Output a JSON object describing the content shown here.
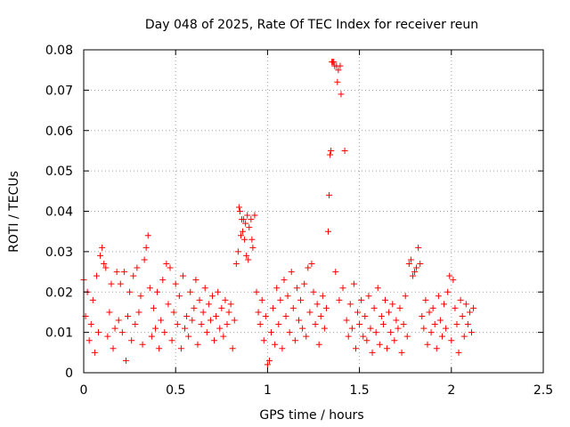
{
  "chart_data": {
    "type": "scatter",
    "title": "Day 048 of 2025, Rate Of TEC Index for receiver reun",
    "xlabel": "GPS time / hours",
    "ylabel": "ROTI / TECUs",
    "xlim": [
      0,
      2.5
    ],
    "ylim": [
      0,
      0.08
    ],
    "x_ticks": [
      0,
      0.5,
      1,
      1.5,
      2,
      2.5
    ],
    "x_tick_labels": [
      "0",
      "0.5",
      "1",
      "1.5",
      "2",
      "2.5"
    ],
    "y_ticks": [
      0,
      0.01,
      0.02,
      0.03,
      0.04,
      0.05,
      0.06,
      0.07,
      0.08
    ],
    "y_tick_labels": [
      "0",
      "0.01",
      "0.02",
      "0.03",
      "0.04",
      "0.05",
      "0.06",
      "0.07",
      "0.08"
    ],
    "grid": true,
    "marker": "+",
    "color": "#ff0000",
    "series": [
      {
        "name": "ROTI",
        "points": [
          [
            0.0,
            0.023
          ],
          [
            0.01,
            0.014
          ],
          [
            0.02,
            0.02
          ],
          [
            0.03,
            0.008
          ],
          [
            0.04,
            0.012
          ],
          [
            0.05,
            0.018
          ],
          [
            0.06,
            0.005
          ],
          [
            0.07,
            0.024
          ],
          [
            0.08,
            0.01
          ],
          [
            0.09,
            0.029
          ],
          [
            0.1,
            0.031
          ],
          [
            0.11,
            0.027
          ],
          [
            0.12,
            0.026
          ],
          [
            0.13,
            0.009
          ],
          [
            0.14,
            0.015
          ],
          [
            0.15,
            0.022
          ],
          [
            0.16,
            0.006
          ],
          [
            0.17,
            0.011
          ],
          [
            0.18,
            0.025
          ],
          [
            0.19,
            0.013
          ],
          [
            0.2,
            0.022
          ],
          [
            0.21,
            0.01
          ],
          [
            0.22,
            0.025
          ],
          [
            0.23,
            0.003
          ],
          [
            0.24,
            0.014
          ],
          [
            0.25,
            0.02
          ],
          [
            0.26,
            0.008
          ],
          [
            0.27,
            0.024
          ],
          [
            0.28,
            0.012
          ],
          [
            0.29,
            0.026
          ],
          [
            0.3,
            0.015
          ],
          [
            0.31,
            0.019
          ],
          [
            0.32,
            0.007
          ],
          [
            0.33,
            0.028
          ],
          [
            0.34,
            0.031
          ],
          [
            0.35,
            0.034
          ],
          [
            0.36,
            0.021
          ],
          [
            0.37,
            0.009
          ],
          [
            0.38,
            0.016
          ],
          [
            0.39,
            0.011
          ],
          [
            0.4,
            0.02
          ],
          [
            0.41,
            0.006
          ],
          [
            0.42,
            0.013
          ],
          [
            0.43,
            0.023
          ],
          [
            0.44,
            0.01
          ],
          [
            0.45,
            0.027
          ],
          [
            0.46,
            0.017
          ],
          [
            0.47,
            0.026
          ],
          [
            0.48,
            0.008
          ],
          [
            0.49,
            0.015
          ],
          [
            0.5,
            0.022
          ],
          [
            0.51,
            0.012
          ],
          [
            0.52,
            0.019
          ],
          [
            0.53,
            0.006
          ],
          [
            0.54,
            0.024
          ],
          [
            0.55,
            0.011
          ],
          [
            0.56,
            0.014
          ],
          [
            0.57,
            0.009
          ],
          [
            0.58,
            0.02
          ],
          [
            0.59,
            0.013
          ],
          [
            0.6,
            0.016
          ],
          [
            0.61,
            0.023
          ],
          [
            0.62,
            0.007
          ],
          [
            0.63,
            0.018
          ],
          [
            0.64,
            0.012
          ],
          [
            0.65,
            0.015
          ],
          [
            0.66,
            0.021
          ],
          [
            0.67,
            0.01
          ],
          [
            0.68,
            0.017
          ],
          [
            0.69,
            0.013
          ],
          [
            0.7,
            0.019
          ],
          [
            0.71,
            0.008
          ],
          [
            0.72,
            0.014
          ],
          [
            0.73,
            0.02
          ],
          [
            0.74,
            0.011
          ],
          [
            0.75,
            0.016
          ],
          [
            0.76,
            0.009
          ],
          [
            0.77,
            0.018
          ],
          [
            0.78,
            0.012
          ],
          [
            0.79,
            0.015
          ],
          [
            0.8,
            0.017
          ],
          [
            0.81,
            0.006
          ],
          [
            0.82,
            0.013
          ],
          [
            0.83,
            0.027
          ],
          [
            0.84,
            0.03
          ],
          [
            0.845,
            0.041
          ],
          [
            0.85,
            0.04
          ],
          [
            0.855,
            0.034
          ],
          [
            0.86,
            0.038
          ],
          [
            0.865,
            0.035
          ],
          [
            0.87,
            0.038
          ],
          [
            0.875,
            0.033
          ],
          [
            0.88,
            0.037
          ],
          [
            0.885,
            0.029
          ],
          [
            0.89,
            0.039
          ],
          [
            0.895,
            0.028
          ],
          [
            0.9,
            0.036
          ],
          [
            0.91,
            0.038
          ],
          [
            0.915,
            0.033
          ],
          [
            0.92,
            0.031
          ],
          [
            0.93,
            0.039
          ],
          [
            0.94,
            0.02
          ],
          [
            0.95,
            0.015
          ],
          [
            0.96,
            0.012
          ],
          [
            0.97,
            0.018
          ],
          [
            0.98,
            0.008
          ],
          [
            0.99,
            0.014
          ],
          [
            1.0,
            0.002
          ],
          [
            1.01,
            0.003
          ],
          [
            1.02,
            0.01
          ],
          [
            1.03,
            0.016
          ],
          [
            1.04,
            0.007
          ],
          [
            1.05,
            0.021
          ],
          [
            1.06,
            0.012
          ],
          [
            1.07,
            0.018
          ],
          [
            1.08,
            0.006
          ],
          [
            1.09,
            0.023
          ],
          [
            1.1,
            0.014
          ],
          [
            1.11,
            0.019
          ],
          [
            1.12,
            0.01
          ],
          [
            1.13,
            0.025
          ],
          [
            1.14,
            0.016
          ],
          [
            1.15,
            0.008
          ],
          [
            1.16,
            0.021
          ],
          [
            1.17,
            0.013
          ],
          [
            1.18,
            0.018
          ],
          [
            1.19,
            0.011
          ],
          [
            1.2,
            0.022
          ],
          [
            1.21,
            0.009
          ],
          [
            1.22,
            0.026
          ],
          [
            1.23,
            0.015
          ],
          [
            1.24,
            0.027
          ],
          [
            1.25,
            0.02
          ],
          [
            1.26,
            0.012
          ],
          [
            1.27,
            0.017
          ],
          [
            1.28,
            0.007
          ],
          [
            1.29,
            0.014
          ],
          [
            1.3,
            0.019
          ],
          [
            1.31,
            0.011
          ],
          [
            1.32,
            0.016
          ],
          [
            1.33,
            0.035
          ],
          [
            1.335,
            0.044
          ],
          [
            1.34,
            0.054
          ],
          [
            1.345,
            0.055
          ],
          [
            1.35,
            0.077
          ],
          [
            1.355,
            0.077
          ],
          [
            1.36,
            0.077
          ],
          [
            1.365,
            0.076
          ],
          [
            1.37,
            0.025
          ],
          [
            1.375,
            0.076
          ],
          [
            1.38,
            0.072
          ],
          [
            1.385,
            0.075
          ],
          [
            1.39,
            0.018
          ],
          [
            1.395,
            0.076
          ],
          [
            1.4,
            0.069
          ],
          [
            1.41,
            0.021
          ],
          [
            1.42,
            0.055
          ],
          [
            1.43,
            0.013
          ],
          [
            1.44,
            0.009
          ],
          [
            1.45,
            0.017
          ],
          [
            1.46,
            0.011
          ],
          [
            1.47,
            0.022
          ],
          [
            1.48,
            0.006
          ],
          [
            1.49,
            0.015
          ],
          [
            1.5,
            0.012
          ],
          [
            1.51,
            0.018
          ],
          [
            1.52,
            0.009
          ],
          [
            1.53,
            0.014
          ],
          [
            1.54,
            0.008
          ],
          [
            1.55,
            0.019
          ],
          [
            1.56,
            0.011
          ],
          [
            1.57,
            0.005
          ],
          [
            1.58,
            0.016
          ],
          [
            1.59,
            0.01
          ],
          [
            1.6,
            0.021
          ],
          [
            1.61,
            0.007
          ],
          [
            1.62,
            0.014
          ],
          [
            1.63,
            0.012
          ],
          [
            1.64,
            0.018
          ],
          [
            1.65,
            0.006
          ],
          [
            1.66,
            0.015
          ],
          [
            1.67,
            0.01
          ],
          [
            1.68,
            0.017
          ],
          [
            1.69,
            0.008
          ],
          [
            1.7,
            0.013
          ],
          [
            1.71,
            0.011
          ],
          [
            1.72,
            0.016
          ],
          [
            1.73,
            0.005
          ],
          [
            1.74,
            0.012
          ],
          [
            1.75,
            0.019
          ],
          [
            1.76,
            0.009
          ],
          [
            1.77,
            0.027
          ],
          [
            1.78,
            0.028
          ],
          [
            1.79,
            0.024
          ],
          [
            1.8,
            0.025
          ],
          [
            1.81,
            0.026
          ],
          [
            1.82,
            0.031
          ],
          [
            1.83,
            0.027
          ],
          [
            1.84,
            0.014
          ],
          [
            1.85,
            0.011
          ],
          [
            1.86,
            0.018
          ],
          [
            1.87,
            0.007
          ],
          [
            1.88,
            0.015
          ],
          [
            1.89,
            0.01
          ],
          [
            1.9,
            0.016
          ],
          [
            1.91,
            0.012
          ],
          [
            1.92,
            0.006
          ],
          [
            1.93,
            0.019
          ],
          [
            1.94,
            0.013
          ],
          [
            1.95,
            0.009
          ],
          [
            1.96,
            0.017
          ],
          [
            1.97,
            0.011
          ],
          [
            1.98,
            0.02
          ],
          [
            1.99,
            0.024
          ],
          [
            2.0,
            0.008
          ],
          [
            2.01,
            0.023
          ],
          [
            2.02,
            0.016
          ],
          [
            2.03,
            0.012
          ],
          [
            2.04,
            0.005
          ],
          [
            2.05,
            0.018
          ],
          [
            2.06,
            0.014
          ],
          [
            2.07,
            0.009
          ],
          [
            2.08,
            0.017
          ],
          [
            2.09,
            0.012
          ],
          [
            2.1,
            0.015
          ],
          [
            2.11,
            0.01
          ],
          [
            2.12,
            0.016
          ]
        ]
      }
    ]
  }
}
